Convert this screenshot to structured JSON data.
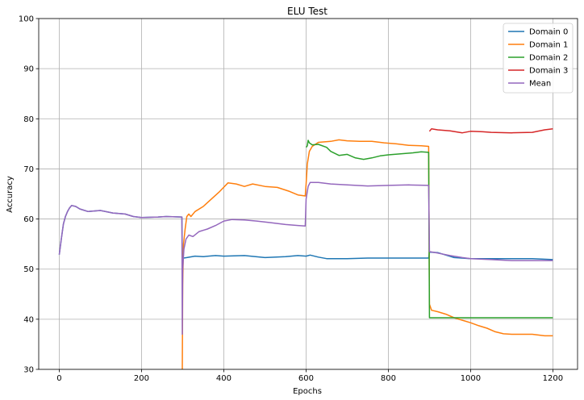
{
  "chart_data": {
    "type": "line",
    "title": "ELU Test",
    "xlabel": "Epochs",
    "ylabel": "Accuracy",
    "xlim": [
      -50,
      1260
    ],
    "ylim": [
      30,
      100
    ],
    "xticks": [
      0,
      200,
      400,
      600,
      800,
      1000,
      1200
    ],
    "yticks": [
      30,
      40,
      50,
      60,
      70,
      80,
      90,
      100
    ],
    "grid": true,
    "legend_position": "top-right",
    "series": [
      {
        "name": "Domain 0",
        "color": "#1f77b4",
        "points": [
          [
            0,
            52.9
          ],
          [
            5,
            56
          ],
          [
            10,
            59
          ],
          [
            15,
            60.5
          ],
          [
            20,
            61.5
          ],
          [
            25,
            62.2
          ],
          [
            30,
            62.7
          ],
          [
            40,
            62.5
          ],
          [
            50,
            62
          ],
          [
            70,
            61.5
          ],
          [
            100,
            61.7
          ],
          [
            130,
            61.2
          ],
          [
            160,
            61
          ],
          [
            180,
            60.5
          ],
          [
            200,
            60.3
          ],
          [
            240,
            60.4
          ],
          [
            260,
            60.5
          ],
          [
            298,
            60.4
          ],
          [
            299,
            52.3
          ],
          [
            302,
            52.2
          ],
          [
            310,
            52.3
          ],
          [
            330,
            52.6
          ],
          [
            350,
            52.5
          ],
          [
            380,
            52.7
          ],
          [
            400,
            52.6
          ],
          [
            450,
            52.7
          ],
          [
            500,
            52.3
          ],
          [
            550,
            52.5
          ],
          [
            580,
            52.7
          ],
          [
            600,
            52.6
          ],
          [
            610,
            52.8
          ],
          [
            630,
            52.4
          ],
          [
            650,
            52.1
          ],
          [
            700,
            52.1
          ],
          [
            750,
            52.2
          ],
          [
            800,
            52.2
          ],
          [
            850,
            52.2
          ],
          [
            898,
            52.2
          ],
          [
            900,
            53.4
          ],
          [
            920,
            53.3
          ],
          [
            940,
            52.8
          ],
          [
            960,
            52.3
          ],
          [
            1000,
            52.1
          ],
          [
            1050,
            52.1
          ],
          [
            1100,
            52.1
          ],
          [
            1150,
            52.1
          ],
          [
            1200,
            51.9
          ]
        ]
      },
      {
        "name": "Domain 1",
        "color": "#ff7f0e",
        "points": [
          [
            299,
            30
          ],
          [
            300,
            47
          ],
          [
            302,
            55
          ],
          [
            306,
            58
          ],
          [
            310,
            60.5
          ],
          [
            315,
            61
          ],
          [
            320,
            60.5
          ],
          [
            330,
            61.5
          ],
          [
            350,
            62.5
          ],
          [
            370,
            64
          ],
          [
            390,
            65.5
          ],
          [
            410,
            67.2
          ],
          [
            430,
            67
          ],
          [
            450,
            66.5
          ],
          [
            470,
            67
          ],
          [
            500,
            66.5
          ],
          [
            530,
            66.3
          ],
          [
            560,
            65.5
          ],
          [
            580,
            64.8
          ],
          [
            598,
            64.6
          ],
          [
            600,
            67
          ],
          [
            603,
            71
          ],
          [
            608,
            73.5
          ],
          [
            615,
            74.5
          ],
          [
            630,
            75.3
          ],
          [
            660,
            75.5
          ],
          [
            680,
            75.8
          ],
          [
            700,
            75.6
          ],
          [
            730,
            75.5
          ],
          [
            760,
            75.5
          ],
          [
            790,
            75.2
          ],
          [
            820,
            75
          ],
          [
            850,
            74.7
          ],
          [
            880,
            74.6
          ],
          [
            898,
            74.5
          ],
          [
            900,
            43
          ],
          [
            905,
            41.8
          ],
          [
            920,
            41.5
          ],
          [
            940,
            41
          ],
          [
            960,
            40.3
          ],
          [
            980,
            39.8
          ],
          [
            1000,
            39.3
          ],
          [
            1020,
            38.7
          ],
          [
            1040,
            38.2
          ],
          [
            1060,
            37.5
          ],
          [
            1080,
            37.1
          ],
          [
            1100,
            37
          ],
          [
            1150,
            37
          ],
          [
            1180,
            36.7
          ],
          [
            1200,
            36.7
          ]
        ]
      },
      {
        "name": "Domain 2",
        "color": "#2ca02c",
        "points": [
          [
            600,
            74.3
          ],
          [
            603,
            74.6
          ],
          [
            605,
            75.7
          ],
          [
            608,
            75.2
          ],
          [
            615,
            74.8
          ],
          [
            630,
            74.9
          ],
          [
            650,
            74.3
          ],
          [
            660,
            73.5
          ],
          [
            680,
            72.7
          ],
          [
            700,
            72.9
          ],
          [
            720,
            72.2
          ],
          [
            740,
            71.9
          ],
          [
            760,
            72.2
          ],
          [
            780,
            72.6
          ],
          [
            800,
            72.8
          ],
          [
            830,
            73
          ],
          [
            860,
            73.2
          ],
          [
            880,
            73.4
          ],
          [
            898,
            73.3
          ],
          [
            900,
            40.3
          ],
          [
            920,
            40.3
          ],
          [
            1000,
            40.3
          ],
          [
            1100,
            40.3
          ],
          [
            1200,
            40.3
          ]
        ]
      },
      {
        "name": "Domain 3",
        "color": "#d62728",
        "points": [
          [
            900,
            77.5
          ],
          [
            905,
            78
          ],
          [
            920,
            77.8
          ],
          [
            950,
            77.6
          ],
          [
            980,
            77.2
          ],
          [
            1000,
            77.5
          ],
          [
            1030,
            77.4
          ],
          [
            1050,
            77.3
          ],
          [
            1100,
            77.2
          ],
          [
            1150,
            77.3
          ],
          [
            1180,
            77.8
          ],
          [
            1200,
            78
          ]
        ]
      },
      {
        "name": "Mean",
        "color": "#9467bd",
        "points": [
          [
            0,
            52.9
          ],
          [
            5,
            56
          ],
          [
            10,
            59
          ],
          [
            15,
            60.5
          ],
          [
            20,
            61.5
          ],
          [
            25,
            62.2
          ],
          [
            30,
            62.7
          ],
          [
            40,
            62.5
          ],
          [
            50,
            62
          ],
          [
            70,
            61.5
          ],
          [
            100,
            61.7
          ],
          [
            130,
            61.2
          ],
          [
            160,
            61
          ],
          [
            180,
            60.5
          ],
          [
            200,
            60.3
          ],
          [
            240,
            60.4
          ],
          [
            260,
            60.5
          ],
          [
            298,
            60.4
          ],
          [
            299,
            37
          ],
          [
            300,
            50
          ],
          [
            303,
            54
          ],
          [
            308,
            56
          ],
          [
            315,
            56.8
          ],
          [
            325,
            56.5
          ],
          [
            340,
            57.5
          ],
          [
            360,
            58
          ],
          [
            380,
            58.7
          ],
          [
            400,
            59.6
          ],
          [
            420,
            59.9
          ],
          [
            450,
            59.8
          ],
          [
            480,
            59.6
          ],
          [
            510,
            59.3
          ],
          [
            550,
            58.9
          ],
          [
            580,
            58.7
          ],
          [
            598,
            58.6
          ],
          [
            600,
            64
          ],
          [
            605,
            66.5
          ],
          [
            610,
            67.3
          ],
          [
            630,
            67.3
          ],
          [
            660,
            67
          ],
          [
            700,
            66.8
          ],
          [
            750,
            66.6
          ],
          [
            800,
            66.7
          ],
          [
            850,
            66.8
          ],
          [
            898,
            66.7
          ],
          [
            900,
            53.5
          ],
          [
            920,
            53.2
          ],
          [
            950,
            52.7
          ],
          [
            980,
            52.3
          ],
          [
            1000,
            52.1
          ],
          [
            1050,
            51.9
          ],
          [
            1100,
            51.7
          ],
          [
            1150,
            51.7
          ],
          [
            1200,
            51.7
          ]
        ]
      }
    ]
  }
}
